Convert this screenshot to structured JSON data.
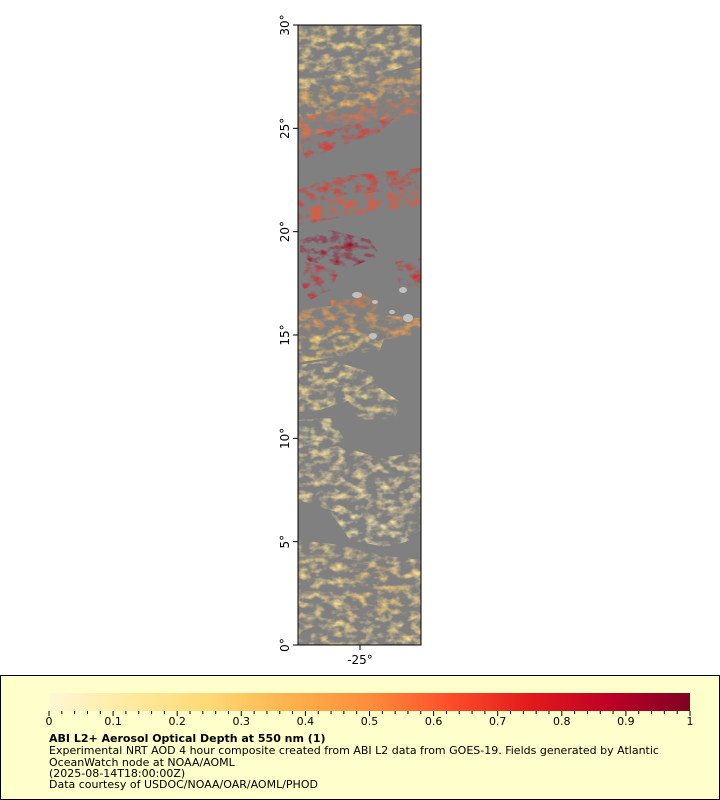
{
  "map": {
    "lat_ticks": [
      "0°",
      "5°",
      "10°",
      "15°",
      "20°",
      "25°",
      "30°"
    ],
    "lon_ticks": [
      "-25°"
    ],
    "lat_range": [
      0,
      30
    ],
    "lon_label_value": -25,
    "land_color": "#808080",
    "no_data_color": "#ffffff",
    "island_color": "#c0c0c0"
  },
  "legend": {
    "ticks": [
      "0",
      "0.1",
      "0.2",
      "0.3",
      "0.4",
      "0.5",
      "0.6",
      "0.7",
      "0.8",
      "0.9",
      "1"
    ],
    "range": [
      0,
      1
    ],
    "title": "ABI L2+ Aerosol Optical Depth at 550 nm (1)",
    "description": "Experimental NRT AOD 4 hour composite created from ABI L2 data from GOES-19. Fields generated by Atlantic OceanWatch node at NOAA/AOML",
    "time": "(2025-08-14T18:00:00Z)",
    "credit": "Data courtesy of USDOC/NOAA/OAR/AOML/PHOD",
    "colors": [
      "#fff7d6",
      "#ffeaa0",
      "#fed976",
      "#feb24c",
      "#fd8d3c",
      "#fc4e2a",
      "#e31a1c",
      "#bd0026",
      "#800026"
    ]
  }
}
